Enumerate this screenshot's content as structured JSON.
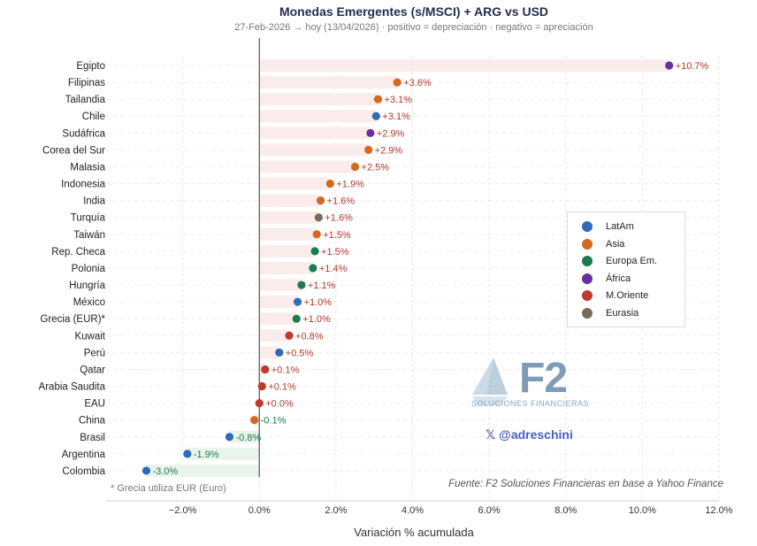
{
  "chart_data": {
    "type": "scatter",
    "orientation": "horizontal-dot-plot",
    "title": "Monedas Emergentes (s/MSCI) + ARG vs USD",
    "subtitle": "27-Feb-2026 → hoy (13/04/2026)  ·  positivo = depreciación  ·  negativo = apreciación",
    "xlabel": "Variación % acumulada",
    "xlim": [
      -4.0,
      12.0
    ],
    "xticks": [
      -2,
      0,
      2,
      4,
      6,
      8,
      10,
      12
    ],
    "xtick_labels": [
      "−2.0%",
      "0.0%",
      "2.0%",
      "4.0%",
      "6.0%",
      "8.0%",
      "10.0%",
      "12.0%"
    ],
    "colors": {
      "LatAm": "#2e6bb8",
      "Asia": "#d2691e",
      "Europa Em.": "#1e7a4f",
      "África": "#6a2f9e",
      "M.Oriente": "#c0392b",
      "Eurasia": "#7a6a5a"
    },
    "items": [
      {
        "name": "Egipto",
        "value": 10.7,
        "label": "+10.7%",
        "region": "África"
      },
      {
        "name": "Filipinas",
        "value": 3.6,
        "label": "+3.6%",
        "region": "Asia"
      },
      {
        "name": "Tailandia",
        "value": 3.1,
        "label": "+3.1%",
        "region": "Asia"
      },
      {
        "name": "Chile",
        "value": 3.05,
        "label": "+3.1%",
        "region": "LatAm"
      },
      {
        "name": "Sudáfrica",
        "value": 2.9,
        "label": "+2.9%",
        "region": "África"
      },
      {
        "name": "Corea del Sur",
        "value": 2.85,
        "label": "+2.9%",
        "region": "Asia"
      },
      {
        "name": "Malasia",
        "value": 2.5,
        "label": "+2.5%",
        "region": "Asia"
      },
      {
        "name": "Indonesia",
        "value": 1.85,
        "label": "+1.9%",
        "region": "Asia"
      },
      {
        "name": "India",
        "value": 1.6,
        "label": "+1.6%",
        "region": "Asia"
      },
      {
        "name": "Turquía",
        "value": 1.55,
        "label": "+1.6%",
        "region": "Eurasia"
      },
      {
        "name": "Taiwán",
        "value": 1.5,
        "label": "+1.5%",
        "region": "Asia"
      },
      {
        "name": "Rep. Checa",
        "value": 1.45,
        "label": "+1.5%",
        "region": "Europa Em."
      },
      {
        "name": "Polonia",
        "value": 1.4,
        "label": "+1.4%",
        "region": "Europa Em."
      },
      {
        "name": "Hungría",
        "value": 1.1,
        "label": "+1.1%",
        "region": "Europa Em."
      },
      {
        "name": "México",
        "value": 1.0,
        "label": "+1.0%",
        "region": "LatAm"
      },
      {
        "name": "Grecia (EUR)*",
        "value": 0.97,
        "label": "+1.0%",
        "region": "Europa Em."
      },
      {
        "name": "Kuwait",
        "value": 0.78,
        "label": "+0.8%",
        "region": "M.Oriente"
      },
      {
        "name": "Perú",
        "value": 0.52,
        "label": "+0.5%",
        "region": "LatAm"
      },
      {
        "name": "Qatar",
        "value": 0.15,
        "label": "+0.1%",
        "region": "M.Oriente"
      },
      {
        "name": "Arabia Saudita",
        "value": 0.07,
        "label": "+0.1%",
        "region": "M.Oriente"
      },
      {
        "name": "EAU",
        "value": 0.0,
        "label": "+0.0%",
        "region": "M.Oriente"
      },
      {
        "name": "China",
        "value": -0.13,
        "label": "-0.1%",
        "region": "Asia"
      },
      {
        "name": "Brasil",
        "value": -0.78,
        "label": "-0.8%",
        "region": "LatAm"
      },
      {
        "name": "Argentina",
        "value": -1.88,
        "label": "-1.9%",
        "region": "LatAm"
      },
      {
        "name": "Colombia",
        "value": -2.95,
        "label": "-3.0%",
        "region": "LatAm"
      }
    ],
    "legend": [
      "LatAm",
      "Asia",
      "Europa Em.",
      "África",
      "M.Oriente",
      "Eurasia"
    ],
    "legend_position": "center-right",
    "grid": true
  },
  "footnote": "* Grecia utiliza EUR (Euro)",
  "source": "Fuente: F2 Soluciones Financieras en base a Yahoo Finance",
  "watermark": {
    "brand": "F2",
    "tagline": "SOLUCIONES FINANCIERAS",
    "handle": "𝕏 @adreschini"
  }
}
